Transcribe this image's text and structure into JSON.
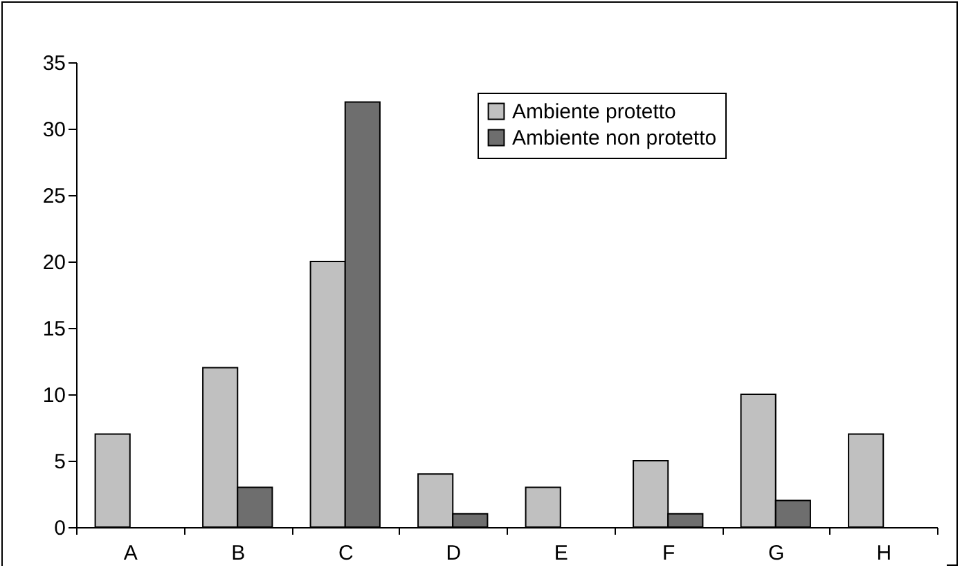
{
  "chart_data": {
    "type": "bar",
    "categories": [
      "A",
      "B",
      "C",
      "D",
      "E",
      "F",
      "G",
      "H"
    ],
    "series": [
      {
        "name": "Ambiente protetto",
        "color": "#c0c0c0",
        "values": [
          7,
          12,
          20,
          4,
          3,
          5,
          10,
          7
        ]
      },
      {
        "name": "Ambiente non protetto",
        "color": "#6e6e6e",
        "values": [
          null,
          3,
          32,
          1,
          null,
          1,
          2,
          null
        ]
      }
    ],
    "ylim": [
      0,
      35
    ],
    "yticks": [
      0,
      5,
      10,
      15,
      20,
      25,
      30,
      35
    ],
    "grid": false,
    "legend": "top right"
  }
}
